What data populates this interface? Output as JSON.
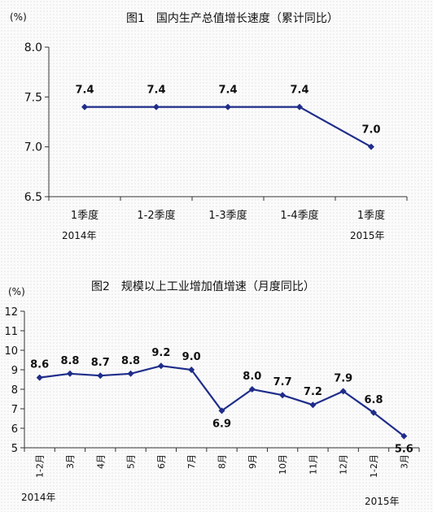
{
  "chart_data": [
    {
      "type": "line",
      "title": "图1　国内生产总值增长速度（累计同比）",
      "unit_label": "(%)",
      "categories": [
        "1季度",
        "1-2季度",
        "1-3季度",
        "1-4季度",
        "1季度"
      ],
      "year_labels": [
        "2014年",
        "2015年"
      ],
      "series": [
        {
          "values": [
            7.4,
            7.4,
            7.4,
            7.4,
            7.0
          ]
        }
      ],
      "data_labels": [
        "7.4",
        "7.4",
        "7.4",
        "7.4",
        "7.0"
      ],
      "ylim": [
        6.5,
        8.0
      ],
      "yticks": [
        "6.5",
        "7.0",
        "7.5",
        "8.0"
      ],
      "grid": false,
      "color": "#1f2d8a"
    },
    {
      "type": "line",
      "title": "图2　规模以上工业增加值增速（月度同比）",
      "unit_label": "(%)",
      "categories": [
        "1-2月",
        "3月",
        "4月",
        "5月",
        "6月",
        "7月",
        "8月",
        "9月",
        "10月",
        "11月",
        "12月",
        "1-2月",
        "3月"
      ],
      "year_labels": [
        "2014年",
        "2015年"
      ],
      "series": [
        {
          "values": [
            8.6,
            8.8,
            8.7,
            8.8,
            9.2,
            9.0,
            6.9,
            8.0,
            7.7,
            7.2,
            7.9,
            6.8,
            5.6
          ]
        }
      ],
      "data_labels": [
        "8.6",
        "8.8",
        "8.7",
        "8.8",
        "9.2",
        "9.0",
        "6.9",
        "8.0",
        "7.7",
        "7.2",
        "7.9",
        "6.8",
        "5.6"
      ],
      "ylim": [
        5,
        12
      ],
      "yticks": [
        "5",
        "6",
        "7",
        "8",
        "9",
        "10",
        "11",
        "12"
      ],
      "grid": false,
      "color": "#1f2d8a"
    }
  ]
}
